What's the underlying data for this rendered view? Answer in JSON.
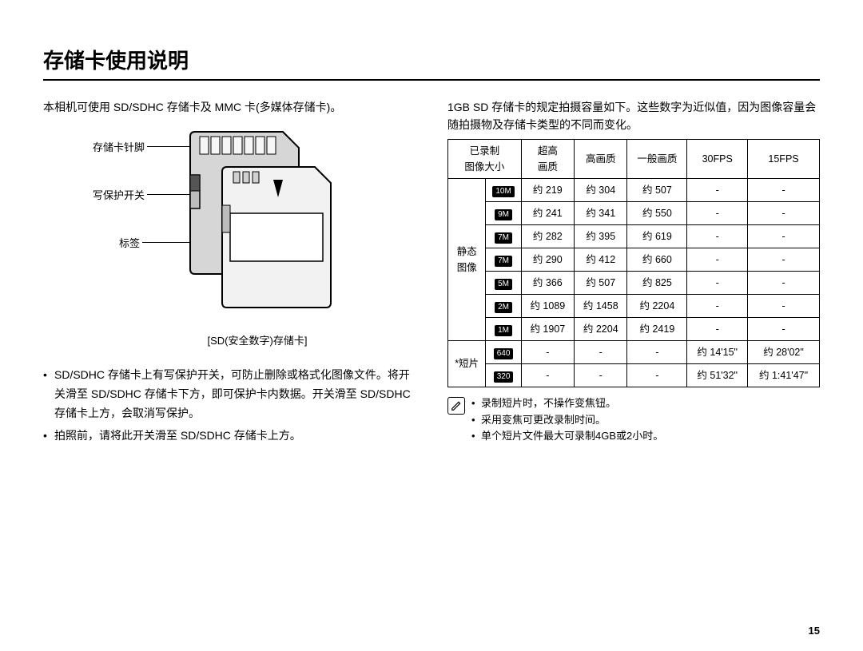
{
  "title": "存储卡使用说明",
  "left": {
    "intro": "本相机可使用 SD/SDHC 存储卡及 MMC 卡(多媒体存储卡)。",
    "labels": {
      "pins": "存储卡针脚",
      "wp": "写保护开关",
      "tag": "标签"
    },
    "caption": "[SD(安全数字)存储卡]",
    "bullets": [
      "SD/SDHC 存储卡上有写保护开关，可防止删除或格式化图像文件。将开关滑至 SD/SDHC 存储卡下方，即可保护卡内数据。开关滑至 SD/SDHC 存储卡上方，会取消写保护。",
      "拍照前，请将此开关滑至 SD/SDHC 存储卡上方。"
    ]
  },
  "right": {
    "intro": "1GB SD 存储卡的规定拍摄容量如下。这些数字为近似值，因为图像容量会随拍摄物及存储卡类型的不同而变化。",
    "table": {
      "headers": [
        "已录制\n图像大小",
        "超高\n画质",
        "高画质",
        "一般画质",
        "30FPS",
        "15FPS"
      ],
      "group1_label": "静态\n图像",
      "group2_label": "*短片",
      "rows_still": [
        {
          "icon": "10M",
          "v": [
            "约 219",
            "约 304",
            "约 507",
            "-",
            "-"
          ]
        },
        {
          "icon": "9M",
          "v": [
            "约 241",
            "约 341",
            "约 550",
            "-",
            "-"
          ]
        },
        {
          "icon": "7M",
          "v": [
            "约 282",
            "约 395",
            "约 619",
            "-",
            "-"
          ]
        },
        {
          "icon": "7M",
          "v": [
            "约 290",
            "约 412",
            "约 660",
            "-",
            "-"
          ]
        },
        {
          "icon": "5M",
          "v": [
            "约 366",
            "约 507",
            "约 825",
            "-",
            "-"
          ]
        },
        {
          "icon": "2M",
          "v": [
            "约 1089",
            "约 1458",
            "约 2204",
            "-",
            "-"
          ]
        },
        {
          "icon": "1M",
          "v": [
            "约 1907",
            "约 2204",
            "约 2419",
            "-",
            "-"
          ]
        }
      ],
      "rows_movie": [
        {
          "icon": "640",
          "v": [
            "-",
            "-",
            "-",
            "约 14'15\"",
            "约 28'02\""
          ]
        },
        {
          "icon": "320",
          "v": [
            "-",
            "-",
            "-",
            "约 51'32\"",
            "约 1:41'47\""
          ]
        }
      ]
    },
    "notes": [
      "录制短片时，不操作变焦钮。",
      "采用变焦可更改录制时间。",
      "单个短片文件最大可录制4GB或2小时。"
    ]
  },
  "page_number": "15",
  "colors": {
    "text": "#000000",
    "bg": "#ffffff",
    "th_alt": "#e8e8e8",
    "icon_bg": "#000000",
    "icon_fg": "#ffffff"
  }
}
